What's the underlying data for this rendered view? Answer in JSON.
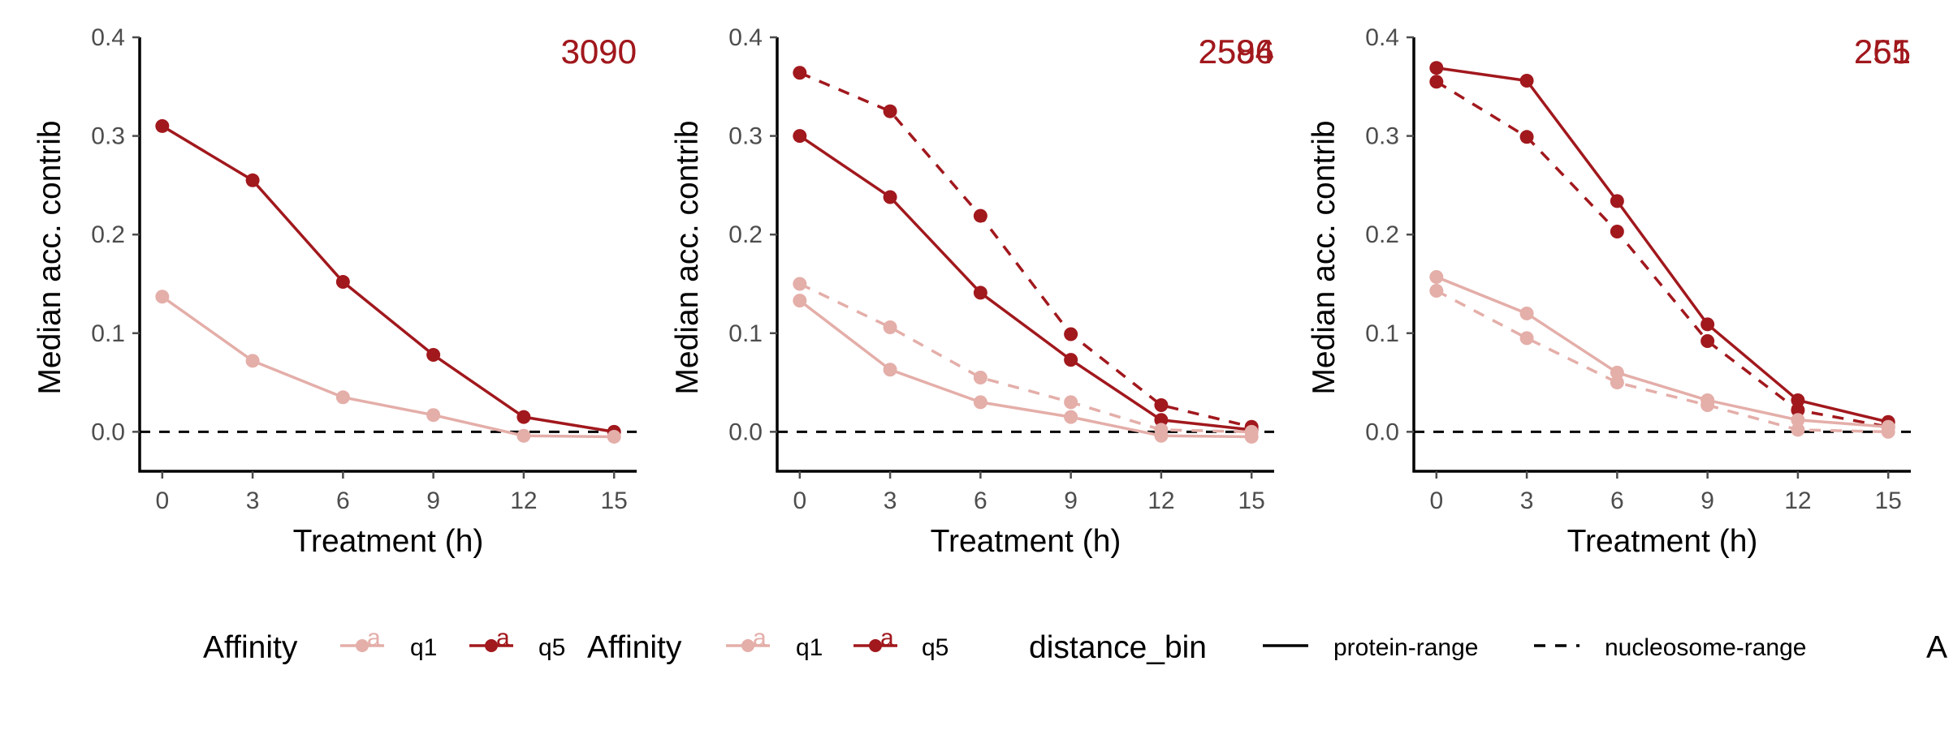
{
  "colors": {
    "q1": "#e4aea9",
    "q5": "#a1181d",
    "axis": "#000000",
    "ticks": "#4d4d4d"
  },
  "chart_data": [
    {
      "type": "line",
      "xlabel": "Treatment (h)",
      "ylabel": "Median acc. contrib",
      "x": [
        0,
        3,
        6,
        9,
        12,
        15
      ],
      "xlim": [
        -0.75,
        15.75
      ],
      "ylim": [
        -0.04,
        0.4
      ],
      "yticks": [
        0.0,
        0.1,
        0.2,
        0.3,
        0.4
      ],
      "reference_line_y": 0.0,
      "count_labels": [
        "3090",
        "3090"
      ],
      "series": [
        {
          "affinity": "q5",
          "distance_bin": "protein-range",
          "values": [
            0.31,
            0.255,
            0.152,
            0.078,
            0.015,
            0.0
          ]
        },
        {
          "affinity": "q1",
          "distance_bin": "protein-range",
          "values": [
            0.137,
            0.072,
            0.035,
            0.017,
            -0.004,
            -0.005
          ]
        }
      ]
    },
    {
      "type": "line",
      "xlabel": "Treatment (h)",
      "ylabel": "Median acc. contrib",
      "x": [
        0,
        3,
        6,
        9,
        12,
        15
      ],
      "xlim": [
        -0.75,
        15.75
      ],
      "ylim": [
        -0.04,
        0.4
      ],
      "yticks": [
        0.0,
        0.1,
        0.2,
        0.3,
        0.4
      ],
      "reference_line_y": 0.0,
      "count_labels": [
        "2596",
        "2584"
      ],
      "series": [
        {
          "affinity": "q5",
          "distance_bin": "nucleosome-range",
          "values": [
            0.364,
            0.325,
            0.219,
            0.099,
            0.027,
            0.005
          ]
        },
        {
          "affinity": "q5",
          "distance_bin": "protein-range",
          "values": [
            0.3,
            0.238,
            0.141,
            0.073,
            0.012,
            0.002
          ]
        },
        {
          "affinity": "q1",
          "distance_bin": "nucleosome-range",
          "values": [
            0.15,
            0.106,
            0.055,
            0.03,
            0.002,
            0.0
          ]
        },
        {
          "affinity": "q1",
          "distance_bin": "protein-range",
          "values": [
            0.133,
            0.063,
            0.03,
            0.015,
            -0.004,
            -0.005
          ]
        }
      ]
    },
    {
      "type": "line",
      "xlabel": "Treatment (h)",
      "ylabel": "Median acc. contrib",
      "x": [
        0,
        3,
        6,
        9,
        12,
        15
      ],
      "xlim": [
        -0.75,
        15.75
      ],
      "ylim": [
        -0.04,
        0.4
      ],
      "yticks": [
        0.0,
        0.1,
        0.2,
        0.3,
        0.4
      ],
      "reference_line_y": 0.0,
      "count_labels": [
        "255",
        "261"
      ],
      "series": [
        {
          "affinity": "q5",
          "distance_bin": "protein-range",
          "values": [
            0.369,
            0.356,
            0.234,
            0.109,
            0.032,
            0.01
          ]
        },
        {
          "affinity": "q5",
          "distance_bin": "nucleosome-range",
          "values": [
            0.355,
            0.299,
            0.203,
            0.092,
            0.022,
            0.005
          ]
        },
        {
          "affinity": "q1",
          "distance_bin": "protein-range",
          "values": [
            0.157,
            0.12,
            0.06,
            0.032,
            0.012,
            0.005
          ]
        },
        {
          "affinity": "q1",
          "distance_bin": "nucleosome-range",
          "values": [
            0.143,
            0.095,
            0.05,
            0.027,
            0.002,
            0.0
          ]
        }
      ]
    }
  ],
  "legend": {
    "affinity_title": "Affinity",
    "affinity_key_glyph": "a",
    "affinity_levels": [
      "q1",
      "q5"
    ],
    "distance_title": "distance_bin",
    "distance_levels": [
      "protein-range",
      "nucleosome-range"
    ],
    "trailing_text": "A"
  }
}
